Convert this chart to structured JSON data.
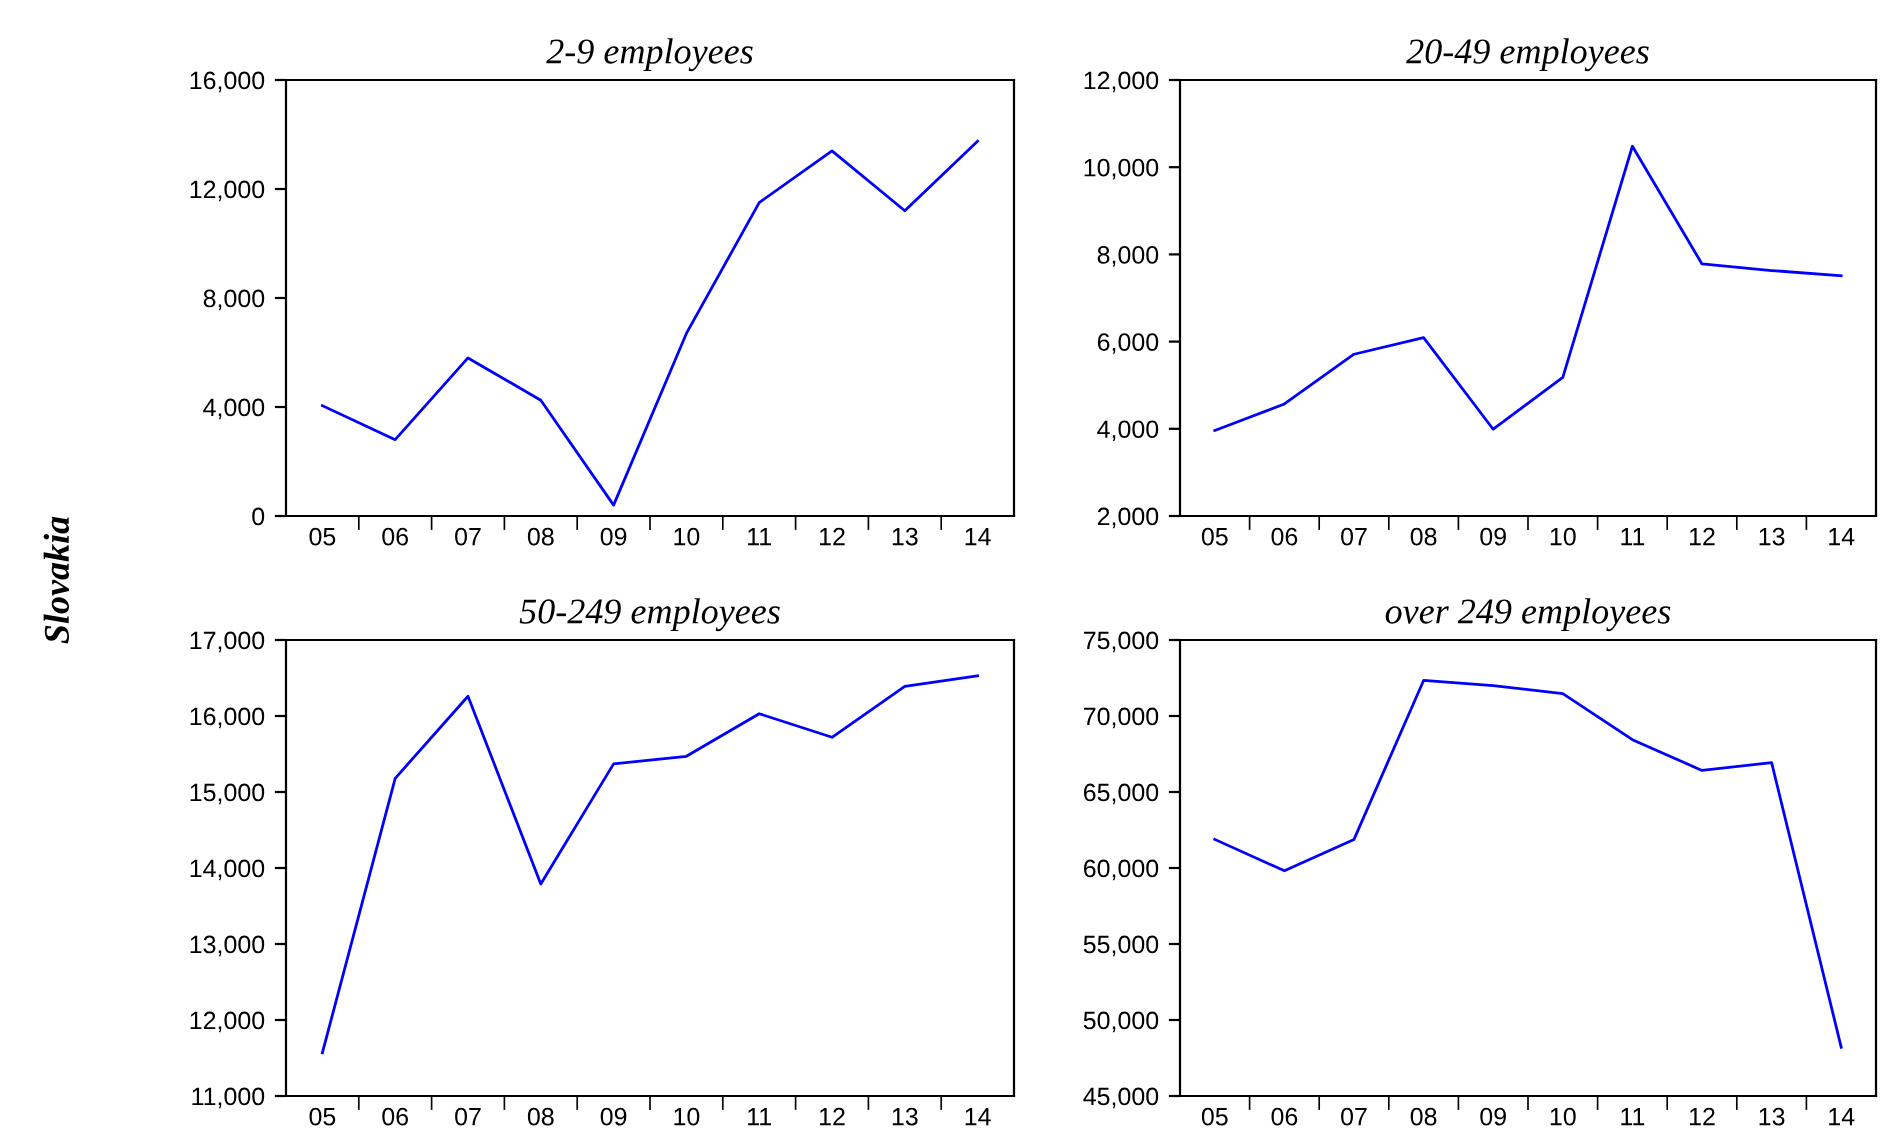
{
  "chart_data": [
    {
      "type": "line",
      "title": "2-9 employees",
      "annotations": [
        "Slovakia"
      ],
      "categories": [
        "05",
        "06",
        "07",
        "08",
        "09",
        "10",
        "11",
        "12",
        "13",
        "14"
      ],
      "series": [
        {
          "color": "#0000ff",
          "values": [
            4050,
            2800,
            5800,
            4250,
            400,
            6700,
            11500,
            13400,
            11200,
            13750
          ]
        }
      ],
      "ylim": [
        0,
        16000
      ],
      "yticks": [
        {
          "value": 0,
          "label": "0"
        },
        {
          "value": 4000,
          "label": "4,000"
        },
        {
          "value": 8000,
          "label": "8,000"
        },
        {
          "value": 12000,
          "label": "12,000"
        },
        {
          "value": 16000,
          "label": "16,000"
        }
      ],
      "grid": false,
      "legend": false
    },
    {
      "type": "line",
      "title": "20-49 employees",
      "categories": [
        "05",
        "06",
        "07",
        "08",
        "09",
        "10",
        "11",
        "12",
        "13",
        "14"
      ],
      "series": [
        {
          "color": "#0000ff",
          "values": [
            3960,
            4570,
            5710,
            6090,
            3990,
            5180,
            10480,
            7780,
            7630,
            7510
          ]
        }
      ],
      "ylim": [
        2000,
        12000
      ],
      "yticks": [
        {
          "value": 2000,
          "label": "2,000"
        },
        {
          "value": 4000,
          "label": "4,000"
        },
        {
          "value": 6000,
          "label": "6,000"
        },
        {
          "value": 8000,
          "label": "8,000"
        },
        {
          "value": 10000,
          "label": "10,000"
        },
        {
          "value": 12000,
          "label": "12,000"
        }
      ],
      "grid": false,
      "legend": false
    },
    {
      "type": "line",
      "title": "50-249 employees",
      "categories": [
        "05",
        "06",
        "07",
        "08",
        "09",
        "10",
        "11",
        "12",
        "13",
        "14"
      ],
      "series": [
        {
          "color": "#0000ff",
          "values": [
            11570,
            15180,
            16260,
            13790,
            15370,
            15470,
            16030,
            15720,
            16390,
            16530
          ]
        }
      ],
      "ylim": [
        11000,
        17000
      ],
      "yticks": [
        {
          "value": 11000,
          "label": "11,000"
        },
        {
          "value": 12000,
          "label": "12,000"
        },
        {
          "value": 13000,
          "label": "13,000"
        },
        {
          "value": 14000,
          "label": "14,000"
        },
        {
          "value": 15000,
          "label": "15,000"
        },
        {
          "value": 16000,
          "label": "16,000"
        },
        {
          "value": 17000,
          "label": "17,000"
        }
      ],
      "grid": false,
      "legend": false
    },
    {
      "type": "line",
      "title": "over 249 employees",
      "categories": [
        "05",
        "06",
        "07",
        "08",
        "09",
        "10",
        "11",
        "12",
        "13",
        "14"
      ],
      "series": [
        {
          "color": "#0000ff",
          "values": [
            61880,
            59820,
            61880,
            72340,
            72000,
            71470,
            68440,
            66420,
            66930,
            48210
          ]
        }
      ],
      "ylim": [
        45000,
        75000
      ],
      "yticks": [
        {
          "value": 45000,
          "label": "45,000"
        },
        {
          "value": 50000,
          "label": "50,000"
        },
        {
          "value": 55000,
          "label": "55,000"
        },
        {
          "value": 60000,
          "label": "60,000"
        },
        {
          "value": 65000,
          "label": "65,000"
        },
        {
          "value": 70000,
          "label": "70,000"
        },
        {
          "value": 75000,
          "label": "75,000"
        }
      ],
      "grid": false,
      "legend": false
    }
  ]
}
